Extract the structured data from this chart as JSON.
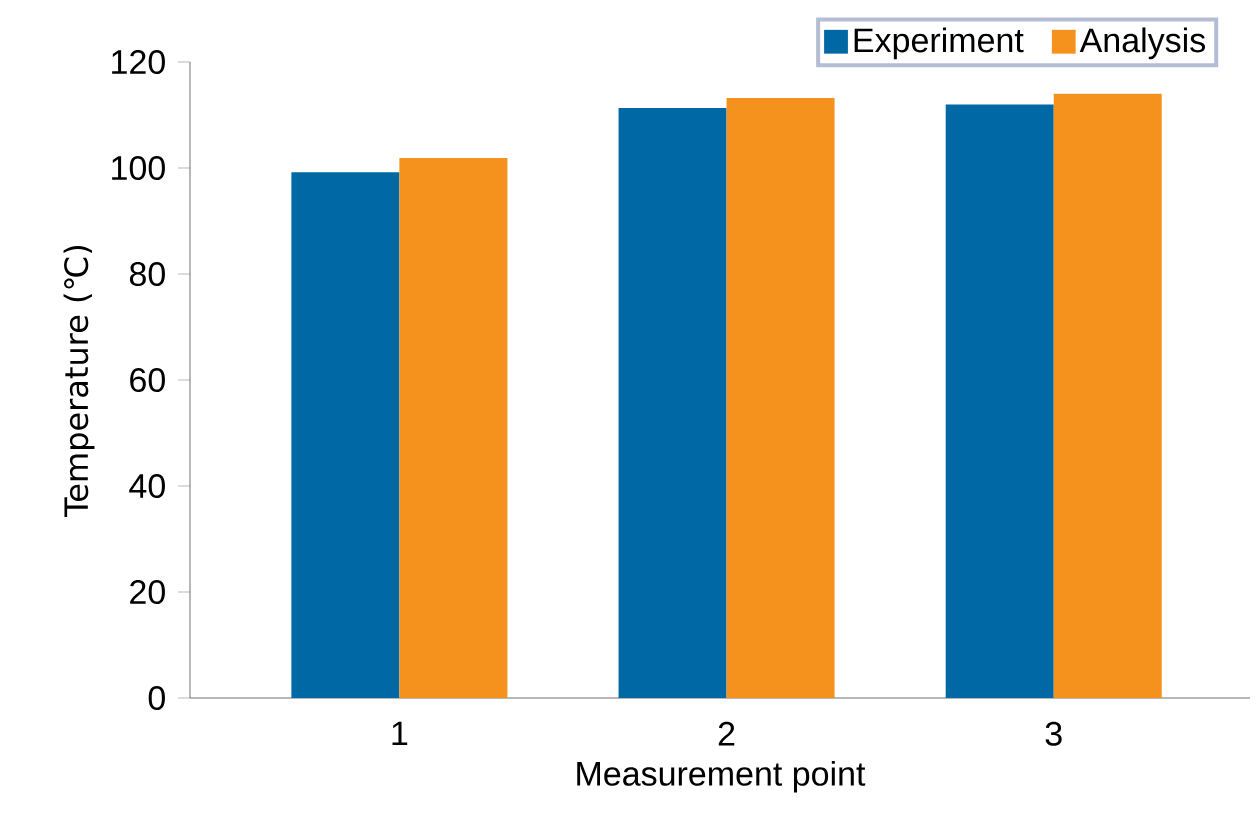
{
  "chart_data": {
    "type": "bar",
    "xlabel": "Measurement point",
    "ylabel": "Temperature (℃)",
    "categories": [
      "1",
      "2",
      "3"
    ],
    "series": [
      {
        "name": "Experiment",
        "color": "#0068a5",
        "values": [
          99.2,
          111.3,
          112.0
        ]
      },
      {
        "name": "Analysis",
        "color": "#f5921e",
        "values": [
          101.9,
          113.2,
          114.0
        ]
      }
    ],
    "ylim": [
      0,
      120
    ],
    "yticks": [
      0,
      20,
      40,
      60,
      80,
      100,
      120
    ],
    "grid": false,
    "legend": "top right"
  }
}
